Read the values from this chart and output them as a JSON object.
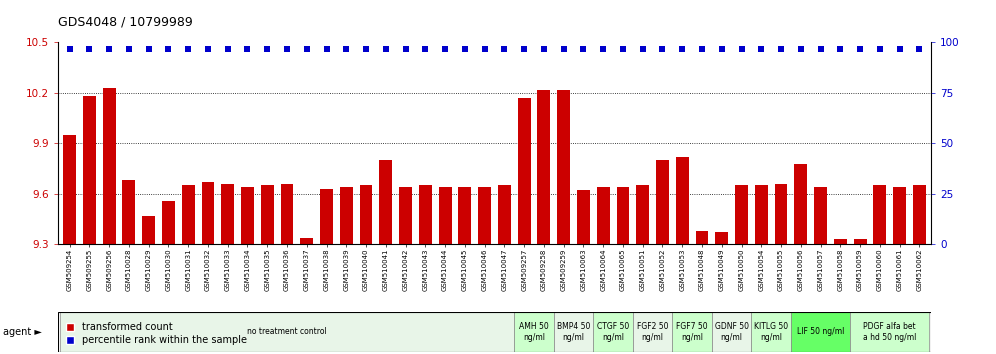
{
  "title": "GDS4048 / 10799989",
  "categories": [
    "GSM509254",
    "GSM509255",
    "GSM509256",
    "GSM510028",
    "GSM510029",
    "GSM510030",
    "GSM510031",
    "GSM510032",
    "GSM510033",
    "GSM510034",
    "GSM510035",
    "GSM510036",
    "GSM510037",
    "GSM510038",
    "GSM510039",
    "GSM510040",
    "GSM510041",
    "GSM510042",
    "GSM510043",
    "GSM510044",
    "GSM510045",
    "GSM510046",
    "GSM510047",
    "GSM509257",
    "GSM509258",
    "GSM509259",
    "GSM510063",
    "GSM510064",
    "GSM510065",
    "GSM510051",
    "GSM510052",
    "GSM510053",
    "GSM510048",
    "GSM510049",
    "GSM510050",
    "GSM510054",
    "GSM510055",
    "GSM510056",
    "GSM510057",
    "GSM510058",
    "GSM510059",
    "GSM510060",
    "GSM510061",
    "GSM510062"
  ],
  "bar_values": [
    9.95,
    10.18,
    10.23,
    9.68,
    9.47,
    9.56,
    9.65,
    9.67,
    9.66,
    9.64,
    9.65,
    9.66,
    9.34,
    9.63,
    9.64,
    9.65,
    9.8,
    9.64,
    9.65,
    9.64,
    9.64,
    9.64,
    9.65,
    10.17,
    10.22,
    10.22,
    9.62,
    9.64,
    9.64,
    9.65,
    9.8,
    9.82,
    9.38,
    9.37,
    9.65,
    9.65,
    9.66,
    9.78,
    9.64,
    9.33,
    9.33,
    9.65,
    9.64,
    9.65
  ],
  "percentile_values": [
    97,
    97,
    97,
    97,
    97,
    97,
    97,
    97,
    97,
    97,
    97,
    97,
    97,
    97,
    97,
    97,
    97,
    97,
    97,
    97,
    97,
    97,
    97,
    97,
    97,
    97,
    97,
    97,
    97,
    97,
    97,
    97,
    97,
    97,
    97,
    97,
    97,
    97,
    97,
    97,
    97,
    97,
    97,
    97
  ],
  "bar_color": "#cc0000",
  "percentile_color": "#0000cc",
  "ylim_left": [
    9.3,
    10.5
  ],
  "ylim_right": [
    0,
    100
  ],
  "yticks_left": [
    9.3,
    9.6,
    9.9,
    10.2,
    10.5
  ],
  "yticks_right": [
    0,
    25,
    50,
    75,
    100
  ],
  "agent_groups": [
    {
      "label": "no treatment control",
      "start": 0,
      "end": 22,
      "color": "#e8f5e8"
    },
    {
      "label": "AMH 50\nng/ml",
      "start": 23,
      "end": 24,
      "color": "#ccffcc"
    },
    {
      "label": "BMP4 50\nng/ml",
      "start": 25,
      "end": 26,
      "color": "#e8f5e8"
    },
    {
      "label": "CTGF 50\nng/ml",
      "start": 27,
      "end": 28,
      "color": "#ccffcc"
    },
    {
      "label": "FGF2 50\nng/ml",
      "start": 29,
      "end": 30,
      "color": "#e8f5e8"
    },
    {
      "label": "FGF7 50\nng/ml",
      "start": 31,
      "end": 32,
      "color": "#ccffcc"
    },
    {
      "label": "GDNF 50\nng/ml",
      "start": 33,
      "end": 34,
      "color": "#e8f5e8"
    },
    {
      "label": "KITLG 50\nng/ml",
      "start": 35,
      "end": 36,
      "color": "#ccffcc"
    },
    {
      "label": "LIF 50 ng/ml",
      "start": 37,
      "end": 39,
      "color": "#66ff66"
    },
    {
      "label": "PDGF alfa bet\na hd 50 ng/ml",
      "start": 40,
      "end": 43,
      "color": "#ccffcc"
    }
  ],
  "background_color": "#ffffff"
}
